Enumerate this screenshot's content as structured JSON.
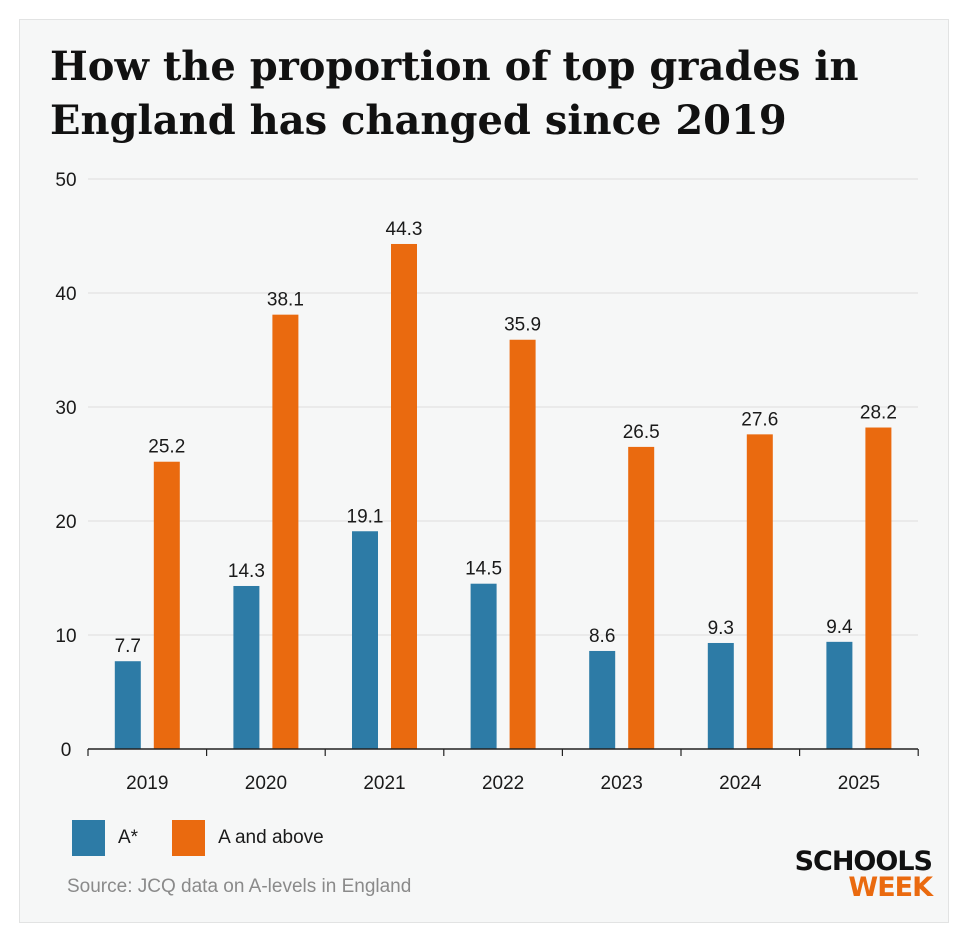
{
  "title": "How the proportion of top grades in England has changed since 2019",
  "chart_data": {
    "type": "bar",
    "title": "How the proportion of top grades in England has changed since 2019",
    "categories": [
      "2019",
      "2020",
      "2021",
      "2022",
      "2023",
      "2024",
      "2025"
    ],
    "series": [
      {
        "name": "A*",
        "color": "#2d7ba6",
        "values": [
          7.7,
          14.3,
          19.1,
          14.5,
          8.6,
          9.3,
          9.4
        ]
      },
      {
        "name": "A and above",
        "color": "#ea6a0f",
        "values": [
          25.2,
          38.1,
          44.3,
          35.9,
          26.5,
          27.6,
          28.2
        ]
      }
    ],
    "ylim": [
      0,
      50
    ],
    "yticks": [
      0,
      10,
      20,
      30,
      40,
      50
    ],
    "grid": true,
    "legend": "bottom-left"
  },
  "source": "Source: JCQ data on A-levels in England",
  "logo": {
    "line1": "SCHOOLS",
    "line2": "WEEK"
  }
}
